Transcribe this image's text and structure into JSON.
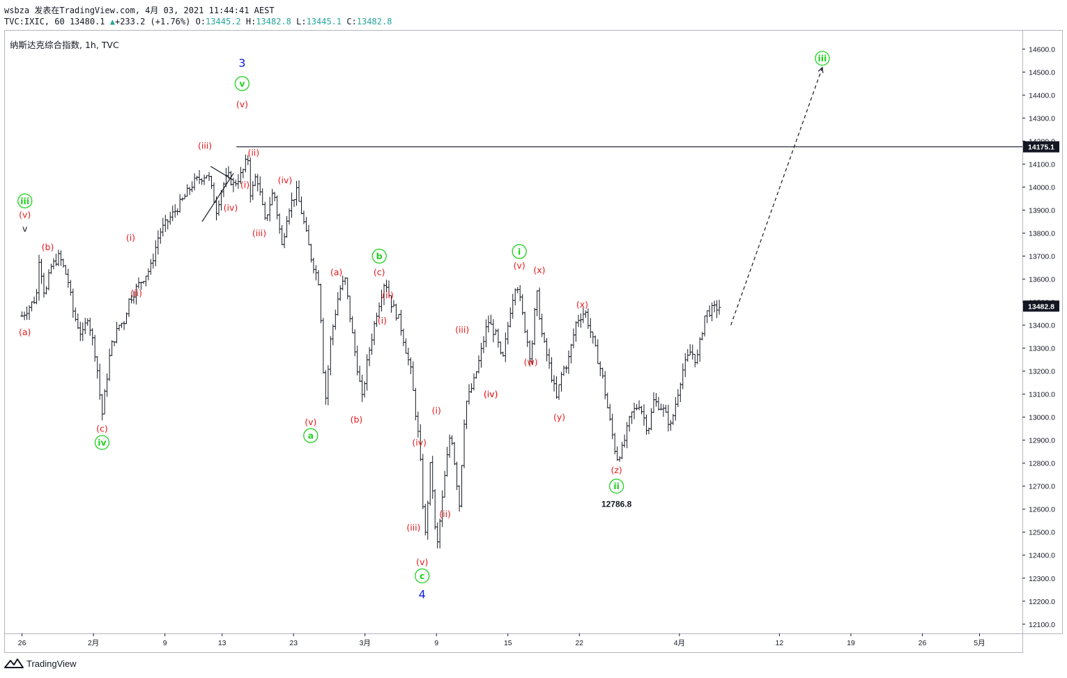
{
  "header": {
    "line1": "wsbza 发表在TradingView.com, 4月 03, 2021 11:44:41 AEST",
    "sym": "TVC:IXIC, 60",
    "last": "13480.1",
    "change": "+233.2 (+1.76%)",
    "o": "13445.2",
    "h": "13482.8",
    "l": "13445.1",
    "c": "13482.8"
  },
  "symbol_line": "纳斯达克综合指数, 1h, TVC",
  "footer": {
    "brand": "TradingView"
  },
  "colors": {
    "red": "#e8191c",
    "green": "#1fd21f",
    "blue": "#0b1ee0",
    "bar": "#131722",
    "price_tag": "#131722"
  },
  "chart_data": {
    "type": "bar",
    "title": "纳斯达克综合指数",
    "interval": "1h",
    "y_range": [
      12060,
      14680
    ],
    "y_ticks": [
      12100,
      12200,
      12300,
      12400,
      12500,
      12600,
      12700,
      12800,
      12900,
      13000,
      13100,
      13200,
      13300,
      13400,
      13500,
      13600,
      13700,
      13800,
      13900,
      14000,
      14100,
      14200,
      14300,
      14400,
      14500,
      14600
    ],
    "x_ticks": [
      {
        "label": "26",
        "pos": 0.0
      },
      {
        "label": "2月",
        "pos": 2.5
      },
      {
        "label": "9",
        "pos": 5.0
      },
      {
        "label": "13",
        "pos": 7.0
      },
      {
        "label": "23",
        "pos": 9.5
      },
      {
        "label": "3月",
        "pos": 12.0
      },
      {
        "label": "9",
        "pos": 14.5
      },
      {
        "label": "15",
        "pos": 17.0
      },
      {
        "label": "22",
        "pos": 19.5
      },
      {
        "label": "4月",
        "pos": 23.0
      },
      {
        "label": "12",
        "pos": 26.5
      },
      {
        "label": "19",
        "pos": 29.0
      },
      {
        "label": "26",
        "pos": 31.5
      },
      {
        "label": "5月",
        "pos": 33.5
      }
    ],
    "x_range": [
      -0.6,
      35.0
    ],
    "price_path": [
      [
        0.0,
        13440
      ],
      [
        0.5,
        13520
      ],
      [
        0.6,
        13700
      ],
      [
        0.8,
        13520
      ],
      [
        1.0,
        13650
      ],
      [
        1.3,
        13700
      ],
      [
        1.6,
        13600
      ],
      [
        1.8,
        13450
      ],
      [
        2.1,
        13350
      ],
      [
        2.3,
        13440
      ],
      [
        2.6,
        13250
      ],
      [
        2.7,
        13120
      ],
      [
        2.8,
        13010
      ],
      [
        3.1,
        13300
      ],
      [
        3.4,
        13400
      ],
      [
        3.6,
        13420
      ],
      [
        3.7,
        13500
      ],
      [
        4.1,
        13580
      ],
      [
        4.5,
        13650
      ],
      [
        4.8,
        13800
      ],
      [
        5.2,
        13870
      ],
      [
        5.6,
        13940
      ],
      [
        6.0,
        14020
      ],
      [
        6.5,
        14060
      ],
      [
        6.8,
        13900
      ],
      [
        7.0,
        14000
      ],
      [
        7.2,
        14050
      ],
      [
        7.4,
        14010
      ],
      [
        7.7,
        14060
      ],
      [
        7.9,
        14130
      ],
      [
        8.0,
        13960
      ],
      [
        8.2,
        14060
      ],
      [
        8.5,
        13850
      ],
      [
        8.8,
        13990
      ],
      [
        9.1,
        13740
      ],
      [
        9.3,
        13900
      ],
      [
        9.6,
        13980
      ],
      [
        9.8,
        13880
      ],
      [
        10.1,
        13700
      ],
      [
        10.4,
        13580
      ],
      [
        10.6,
        13050
      ],
      [
        10.8,
        13340
      ],
      [
        11.1,
        13550
      ],
      [
        11.3,
        13600
      ],
      [
        11.6,
        13320
      ],
      [
        11.9,
        13080
      ],
      [
        12.1,
        13260
      ],
      [
        12.4,
        13450
      ],
      [
        12.7,
        13600
      ],
      [
        12.9,
        13500
      ],
      [
        13.2,
        13420
      ],
      [
        13.6,
        13200
      ],
      [
        13.9,
        12880
      ],
      [
        14.1,
        12470
      ],
      [
        14.3,
        12820
      ],
      [
        14.5,
        12410
      ],
      [
        14.8,
        12750
      ],
      [
        15.0,
        12950
      ],
      [
        15.3,
        12620
      ],
      [
        15.5,
        13050
      ],
      [
        15.8,
        13150
      ],
      [
        16.0,
        13250
      ],
      [
        16.3,
        13420
      ],
      [
        16.6,
        13350
      ],
      [
        16.8,
        13230
      ],
      [
        17.1,
        13480
      ],
      [
        17.3,
        13600
      ],
      [
        17.5,
        13450
      ],
      [
        17.8,
        13250
      ],
      [
        18.0,
        13550
      ],
      [
        18.2,
        13350
      ],
      [
        18.4,
        13250
      ],
      [
        18.7,
        13080
      ],
      [
        18.9,
        13200
      ],
      [
        19.1,
        13240
      ],
      [
        19.4,
        13420
      ],
      [
        19.7,
        13460
      ],
      [
        20.0,
        13320
      ],
      [
        20.3,
        13180
      ],
      [
        20.5,
        13030
      ],
      [
        20.8,
        12820
      ],
      [
        21.0,
        12860
      ],
      [
        21.3,
        13010
      ],
      [
        21.6,
        13060
      ],
      [
        21.9,
        12940
      ],
      [
        22.1,
        13070
      ],
      [
        22.4,
        13040
      ],
      [
        22.7,
        12960
      ],
      [
        22.9,
        13080
      ],
      [
        23.1,
        13200
      ],
      [
        23.4,
        13290
      ],
      [
        23.6,
        13240
      ],
      [
        23.9,
        13450
      ],
      [
        24.2,
        13470
      ],
      [
        24.4,
        13480
      ]
    ],
    "resistance_level": 14175.1,
    "last_price": 13482.8,
    "price_labels": [
      "14175.1",
      "13482.8"
    ],
    "projection": {
      "from": [
        24.8,
        13400
      ],
      "to": [
        28.0,
        14520
      ]
    },
    "low_annotation": {
      "value": 12786.8,
      "text": "12786.8"
    },
    "annotations": [
      {
        "text": "3",
        "color": "blue",
        "x": 7.7,
        "y": 14540,
        "circled": false,
        "size": 16
      },
      {
        "text": "v",
        "color": "green",
        "x": 7.7,
        "y": 14450,
        "circled": true
      },
      {
        "text": "(v)",
        "color": "red",
        "x": 7.7,
        "y": 14360
      },
      {
        "text": "(iii)",
        "color": "red",
        "x": 6.4,
        "y": 14180
      },
      {
        "text": "(ii)",
        "color": "red",
        "x": 8.1,
        "y": 14150
      },
      {
        "text": "(i)",
        "color": "red",
        "x": 7.8,
        "y": 14010
      },
      {
        "text": "(iv)",
        "color": "red",
        "x": 7.3,
        "y": 13910
      },
      {
        "text": "(iv)",
        "color": "red",
        "x": 9.2,
        "y": 14030
      },
      {
        "text": "(iii)",
        "color": "red",
        "x": 8.3,
        "y": 13800
      },
      {
        "text": "iii",
        "color": "green",
        "x": 0.1,
        "y": 13940,
        "circled": true
      },
      {
        "text": "(v)",
        "color": "red",
        "x": 0.1,
        "y": 13880
      },
      {
        "text": "v",
        "color": "bar",
        "x": 0.1,
        "y": 13820
      },
      {
        "text": "(b)",
        "color": "red",
        "x": 0.9,
        "y": 13740
      },
      {
        "text": "(a)",
        "color": "red",
        "x": 0.1,
        "y": 13370
      },
      {
        "text": "(i)",
        "color": "red",
        "x": 3.8,
        "y": 13780
      },
      {
        "text": "(ii)",
        "color": "red",
        "x": 4.0,
        "y": 13540
      },
      {
        "text": "(c)",
        "color": "red",
        "x": 2.8,
        "y": 12950
      },
      {
        "text": "iv",
        "color": "green",
        "x": 2.8,
        "y": 12890,
        "circled": true
      },
      {
        "text": "(a)",
        "color": "red",
        "x": 11.0,
        "y": 13630
      },
      {
        "text": "b",
        "color": "green",
        "x": 12.5,
        "y": 13700,
        "circled": true
      },
      {
        "text": "(c)",
        "color": "red",
        "x": 12.5,
        "y": 13630
      },
      {
        "text": "(ii)",
        "color": "red",
        "x": 12.8,
        "y": 13530
      },
      {
        "text": "(i)",
        "color": "red",
        "x": 12.6,
        "y": 13420
      },
      {
        "text": "(v)",
        "color": "red",
        "x": 10.1,
        "y": 12980
      },
      {
        "text": "a",
        "color": "green",
        "x": 10.1,
        "y": 12920,
        "circled": true
      },
      {
        "text": "(b)",
        "color": "red",
        "x": 11.7,
        "y": 12990
      },
      {
        "text": "(iii)",
        "color": "red",
        "x": 15.4,
        "y": 13380
      },
      {
        "text": "(iv)",
        "color": "red",
        "x": 16.4,
        "y": 13100
      },
      {
        "text": "(i)",
        "color": "red",
        "x": 14.5,
        "y": 13030
      },
      {
        "text": "(iv)",
        "color": "red",
        "x": 13.9,
        "y": 12890
      },
      {
        "text": "(ii)",
        "color": "red",
        "x": 14.8,
        "y": 12580
      },
      {
        "text": "(iii)",
        "color": "red",
        "x": 13.7,
        "y": 12520
      },
      {
        "text": "(v)",
        "color": "red",
        "x": 14.0,
        "y": 12370
      },
      {
        "text": "c",
        "color": "green",
        "x": 14.0,
        "y": 12310,
        "circled": true
      },
      {
        "text": "4",
        "color": "blue",
        "x": 14.0,
        "y": 12230,
        "circled": false,
        "size": 16
      },
      {
        "text": "i",
        "color": "green",
        "x": 17.4,
        "y": 13720,
        "circled": true
      },
      {
        "text": "(v)",
        "color": "red",
        "x": 17.4,
        "y": 13660
      },
      {
        "text": "(x)",
        "color": "red",
        "x": 18.1,
        "y": 13640
      },
      {
        "text": "(w)",
        "color": "red",
        "x": 17.8,
        "y": 13240
      },
      {
        "text": "(iv)",
        "color": "red",
        "x": 16.4,
        "y": 13100
      },
      {
        "text": "(y)",
        "color": "red",
        "x": 18.8,
        "y": 13000
      },
      {
        "text": "(x)",
        "color": "red",
        "x": 19.6,
        "y": 13490
      },
      {
        "text": "(z)",
        "color": "red",
        "x": 20.8,
        "y": 12770
      },
      {
        "text": "ii",
        "color": "green",
        "x": 20.8,
        "y": 12700,
        "circled": true
      },
      {
        "text": "iii",
        "color": "green",
        "x": 28.0,
        "y": 14560,
        "circled": true
      }
    ]
  }
}
